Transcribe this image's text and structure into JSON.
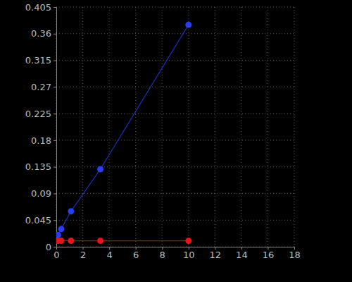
{
  "chart_data": {
    "type": "line",
    "marker": "circle",
    "grid": true,
    "x": [
      0.123,
      0.37,
      1.11,
      3.33,
      10
    ],
    "series": [
      {
        "color": "#2b3df0",
        "values": [
          0.02,
          0.03,
          0.06,
          0.131,
          0.375
        ]
      },
      {
        "color": "#e8141c",
        "values": [
          0.01,
          0.01,
          0.01,
          0.01,
          0.01
        ]
      }
    ],
    "xlim": [
      0,
      18
    ],
    "xticks": [
      0,
      2,
      4,
      6,
      8,
      10,
      12,
      14,
      16,
      18
    ],
    "ylim": [
      0,
      0.405
    ],
    "yticks": [
      0,
      0.045,
      0.09,
      0.135,
      0.18,
      0.225,
      0.27,
      0.315,
      0.36,
      0.405
    ]
  }
}
